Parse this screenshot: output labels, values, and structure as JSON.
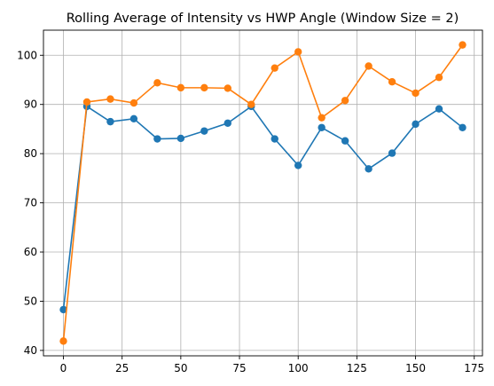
{
  "chart_data": {
    "type": "line",
    "title": "Rolling Average of Intensity vs HWP Angle (Window Size = 2)",
    "xlabel": "",
    "ylabel": "",
    "x": [
      0,
      10,
      20,
      30,
      40,
      50,
      60,
      70,
      80,
      90,
      100,
      110,
      120,
      130,
      140,
      150,
      160,
      170
    ],
    "series": [
      {
        "color": "#1f77b4",
        "values": [
          48.3,
          89.6,
          86.5,
          87.1,
          83.0,
          83.1,
          84.6,
          86.2,
          89.6,
          83.0,
          77.6,
          85.3,
          82.6,
          76.9,
          80.1,
          86.0,
          89.1,
          85.3
        ]
      },
      {
        "color": "#ff7f0e",
        "values": [
          41.9,
          90.5,
          91.1,
          90.3,
          94.4,
          93.4,
          93.4,
          93.3,
          90.0,
          97.4,
          100.7,
          87.3,
          90.8,
          97.8,
          94.6,
          92.3,
          95.5,
          102.1
        ]
      }
    ],
    "xlim": [
      -8.5,
      178.5
    ],
    "ylim": [
      38.9,
      105.1
    ],
    "xticks": [
      0,
      25,
      50,
      75,
      100,
      125,
      150,
      175
    ],
    "yticks": [
      40,
      50,
      60,
      70,
      80,
      90,
      100
    ],
    "grid": true
  }
}
